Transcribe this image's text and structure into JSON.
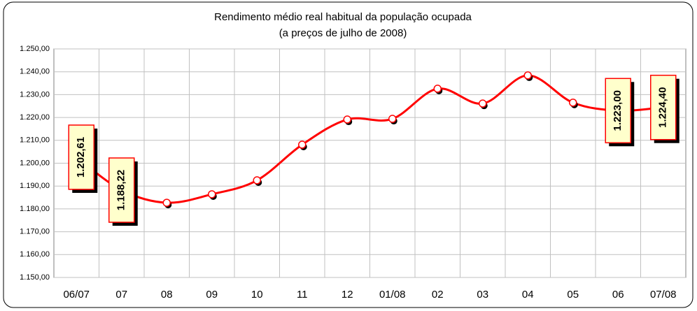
{
  "chart_data": {
    "type": "line",
    "title": "Rendimento médio real habitual da população ocupada",
    "subtitle": "(a preços de julho de 2008)",
    "categories": [
      "06/07",
      "07",
      "08",
      "09",
      "10",
      "11",
      "12",
      "01/08",
      "02",
      "03",
      "04",
      "05",
      "06",
      "07/08"
    ],
    "series": [
      {
        "name": "Rendimento médio real",
        "color": "#ff0000",
        "values": [
          1202.61,
          1188.22,
          1182.7,
          1186.4,
          1192.5,
          1208.1,
          1219.1,
          1219.4,
          1232.6,
          1226.1,
          1238.4,
          1226.5,
          1223.0,
          1224.4
        ],
        "value_labels": [
          "1.202,61",
          "1.188,22",
          null,
          null,
          null,
          null,
          null,
          null,
          null,
          null,
          null,
          null,
          "1.223,00",
          "1.224,40"
        ]
      }
    ],
    "ylim": [
      1150,
      1250
    ],
    "yticks": [
      {
        "value": 1150,
        "label": "1.150,00"
      },
      {
        "value": 1160,
        "label": "1.160,00"
      },
      {
        "value": 1170,
        "label": "1.170,00"
      },
      {
        "value": 1180,
        "label": "1.180,00"
      },
      {
        "value": 1190,
        "label": "1.190,00"
      },
      {
        "value": 1200,
        "label": "1.200,00"
      },
      {
        "value": 1210,
        "label": "1.210,00"
      },
      {
        "value": 1220,
        "label": "1.220,00"
      },
      {
        "value": 1230,
        "label": "1.230,00"
      },
      {
        "value": 1240,
        "label": "1.240,00"
      },
      {
        "value": 1250,
        "label": "1.250,00"
      }
    ],
    "grid": true
  }
}
